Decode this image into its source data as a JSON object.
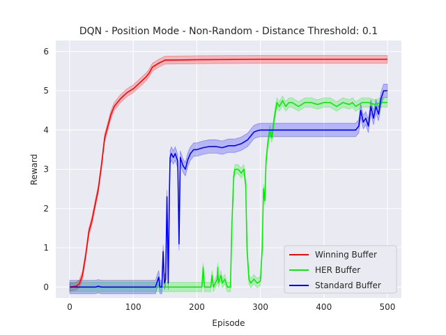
{
  "chart_data": {
    "type": "line",
    "title": "DQN - Position Mode - Non-Random - Distance Threshold: 0.1",
    "xlabel": "Episode",
    "ylabel": "Reward",
    "xlim": [
      -22,
      522
    ],
    "ylim": [
      -0.28,
      6.28
    ],
    "xticks": [
      0,
      100,
      200,
      300,
      400,
      500
    ],
    "yticks": [
      0,
      1,
      2,
      3,
      4,
      5,
      6
    ],
    "background": "#eaeaf2",
    "grid": true,
    "legend_position": "lower-right",
    "series": [
      {
        "name": "Winning Buffer",
        "color": "#ff0000",
        "band_color": "#ff0000",
        "band": 0.1,
        "points": [
          [
            0,
            0
          ],
          [
            10,
            0.02
          ],
          [
            15,
            0.08
          ],
          [
            20,
            0.3
          ],
          [
            25,
            0.8
          ],
          [
            30,
            1.4
          ],
          [
            35,
            1.7
          ],
          [
            40,
            2.1
          ],
          [
            45,
            2.5
          ],
          [
            50,
            3.1
          ],
          [
            55,
            3.8
          ],
          [
            60,
            4.1
          ],
          [
            65,
            4.4
          ],
          [
            70,
            4.6
          ],
          [
            80,
            4.8
          ],
          [
            90,
            4.95
          ],
          [
            100,
            5.05
          ],
          [
            110,
            5.2
          ],
          [
            120,
            5.35
          ],
          [
            125,
            5.45
          ],
          [
            130,
            5.6
          ],
          [
            135,
            5.65
          ],
          [
            140,
            5.7
          ],
          [
            150,
            5.78
          ],
          [
            200,
            5.79
          ],
          [
            300,
            5.8
          ],
          [
            400,
            5.8
          ],
          [
            500,
            5.8
          ]
        ]
      },
      {
        "name": "HER Buffer",
        "color": "#00ee00",
        "band_color": "#00ee00",
        "band": 0.12,
        "points": [
          [
            0,
            0
          ],
          [
            150,
            0
          ],
          [
            200,
            0
          ],
          [
            208,
            0
          ],
          [
            210,
            0.5
          ],
          [
            212,
            0
          ],
          [
            222,
            0
          ],
          [
            224,
            0.3
          ],
          [
            226,
            0
          ],
          [
            232,
            0.2
          ],
          [
            233,
            0.5
          ],
          [
            234,
            0.1
          ],
          [
            238,
            0.3
          ],
          [
            240,
            0.1
          ],
          [
            244,
            0.2
          ],
          [
            248,
            0
          ],
          [
            253,
            0
          ],
          [
            255,
            1.5
          ],
          [
            258,
            2.8
          ],
          [
            260,
            3.0
          ],
          [
            265,
            3.0
          ],
          [
            270,
            2.9
          ],
          [
            274,
            3.0
          ],
          [
            277,
            2.6
          ],
          [
            279,
            1.0
          ],
          [
            282,
            0.2
          ],
          [
            285,
            0.1
          ],
          [
            290,
            0.2
          ],
          [
            295,
            0.1
          ],
          [
            300,
            0.15
          ],
          [
            303,
            1.0
          ],
          [
            305,
            2.5
          ],
          [
            307,
            2.2
          ],
          [
            309,
            3.2
          ],
          [
            312,
            3.7
          ],
          [
            315,
            4.0
          ],
          [
            318,
            3.8
          ],
          [
            322,
            4.3
          ],
          [
            326,
            4.7
          ],
          [
            330,
            4.6
          ],
          [
            335,
            4.75
          ],
          [
            340,
            4.6
          ],
          [
            345,
            4.7
          ],
          [
            350,
            4.7
          ],
          [
            360,
            4.6
          ],
          [
            370,
            4.7
          ],
          [
            380,
            4.7
          ],
          [
            390,
            4.65
          ],
          [
            400,
            4.7
          ],
          [
            410,
            4.7
          ],
          [
            420,
            4.6
          ],
          [
            430,
            4.7
          ],
          [
            440,
            4.65
          ],
          [
            445,
            4.7
          ],
          [
            450,
            4.6
          ],
          [
            460,
            4.7
          ],
          [
            470,
            4.7
          ],
          [
            480,
            4.65
          ],
          [
            490,
            4.7
          ],
          [
            500,
            4.7
          ]
        ]
      },
      {
        "name": "Standard Buffer",
        "color": "#0000ff",
        "band_color": "#0000ff",
        "band": 0.17,
        "points": [
          [
            0,
            0
          ],
          [
            40,
            0
          ],
          [
            45,
            0.02
          ],
          [
            50,
            0
          ],
          [
            135,
            0
          ],
          [
            140,
            0.25
          ],
          [
            142,
            0
          ],
          [
            145,
            0
          ],
          [
            147,
            0.9
          ],
          [
            149,
            0.1
          ],
          [
            151,
            0.2
          ],
          [
            153,
            2.3
          ],
          [
            155,
            0.1
          ],
          [
            157,
            2.5
          ],
          [
            158,
            3.3
          ],
          [
            160,
            3.4
          ],
          [
            163,
            3.3
          ],
          [
            166,
            3.4
          ],
          [
            170,
            3.2
          ],
          [
            172,
            1.1
          ],
          [
            174,
            3.3
          ],
          [
            178,
            3.1
          ],
          [
            182,
            3.0
          ],
          [
            186,
            3.25
          ],
          [
            190,
            3.4
          ],
          [
            195,
            3.5
          ],
          [
            200,
            3.5
          ],
          [
            210,
            3.55
          ],
          [
            220,
            3.58
          ],
          [
            230,
            3.58
          ],
          [
            240,
            3.55
          ],
          [
            250,
            3.6
          ],
          [
            260,
            3.6
          ],
          [
            270,
            3.65
          ],
          [
            280,
            3.75
          ],
          [
            285,
            3.85
          ],
          [
            290,
            3.95
          ],
          [
            295,
            3.98
          ],
          [
            300,
            4.0
          ],
          [
            310,
            4.0
          ],
          [
            320,
            4.0
          ],
          [
            340,
            4.0
          ],
          [
            360,
            4.0
          ],
          [
            380,
            4.0
          ],
          [
            400,
            4.0
          ],
          [
            420,
            4.0
          ],
          [
            440,
            4.0
          ],
          [
            450,
            4.0
          ],
          [
            455,
            4.1
          ],
          [
            458,
            4.5
          ],
          [
            462,
            4.2
          ],
          [
            466,
            4.3
          ],
          [
            470,
            4.1
          ],
          [
            474,
            4.6
          ],
          [
            478,
            4.3
          ],
          [
            482,
            4.6
          ],
          [
            486,
            4.4
          ],
          [
            490,
            4.8
          ],
          [
            494,
            5.0
          ],
          [
            500,
            5.0
          ]
        ]
      }
    ]
  }
}
